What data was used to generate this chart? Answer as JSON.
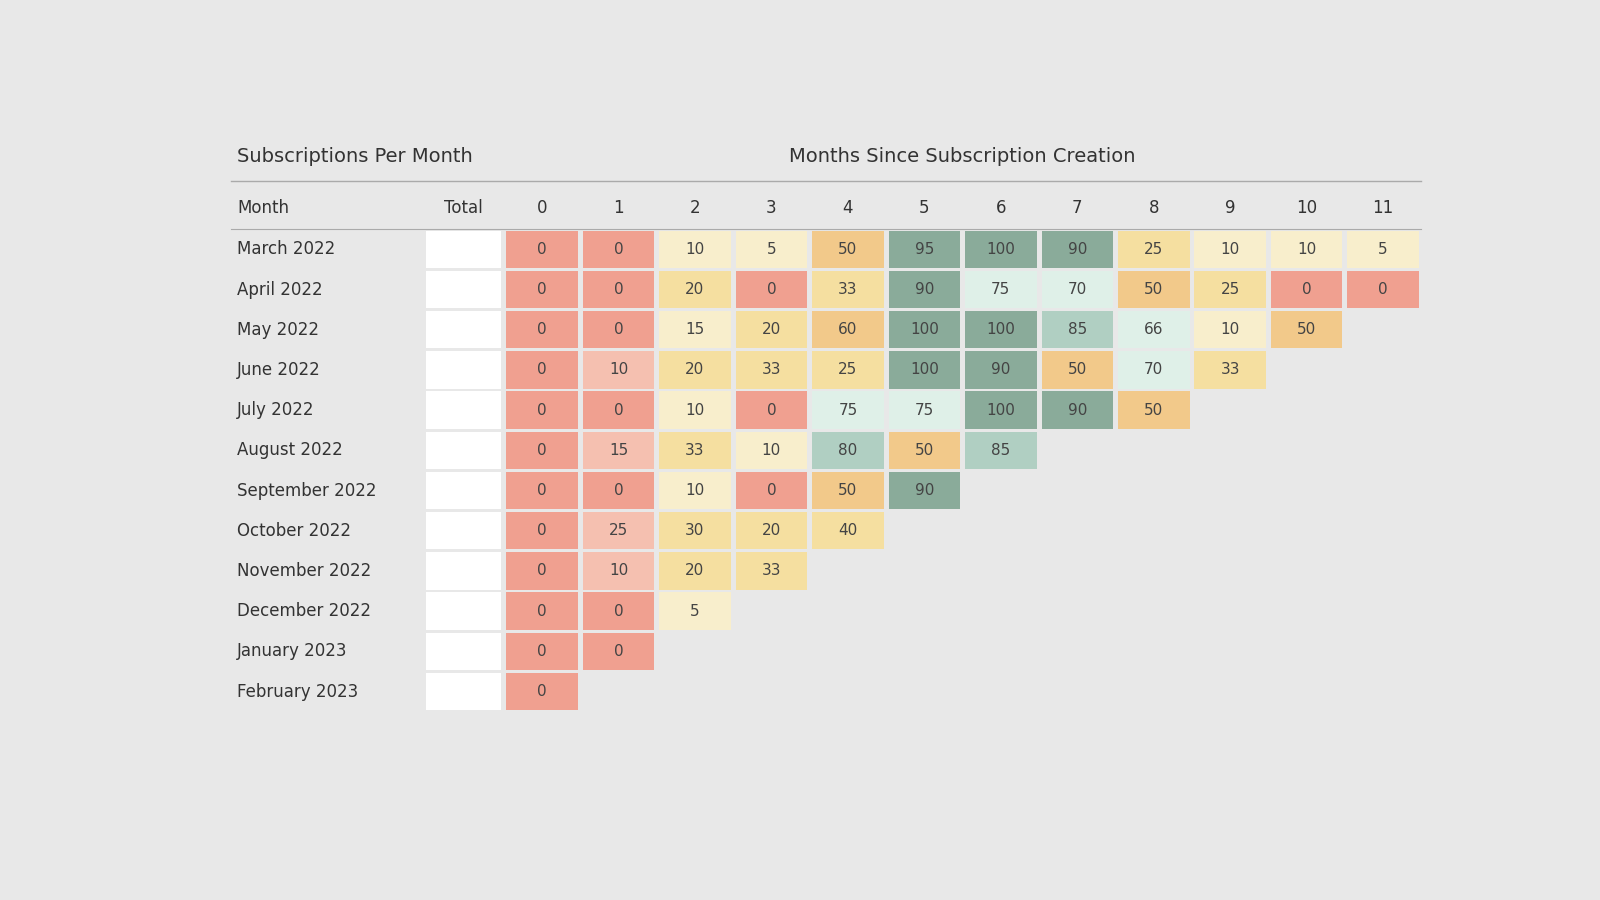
{
  "title_left": "Subscriptions Per Month",
  "title_right": "Months Since Subscription Creation",
  "col_header": [
    "Month",
    "Total",
    "0",
    "1",
    "2",
    "3",
    "4",
    "5",
    "6",
    "7",
    "8",
    "9",
    "10",
    "11"
  ],
  "rows": [
    {
      "month": "March 2022",
      "values": [
        0,
        0,
        10,
        5,
        50,
        95,
        100,
        90,
        25,
        10,
        10,
        5
      ]
    },
    {
      "month": "April 2022",
      "values": [
        0,
        0,
        20,
        0,
        33,
        90,
        75,
        70,
        50,
        25,
        0,
        0
      ]
    },
    {
      "month": "May 2022",
      "values": [
        0,
        0,
        15,
        20,
        60,
        100,
        100,
        85,
        66,
        10,
        50,
        null
      ]
    },
    {
      "month": "June 2022",
      "values": [
        0,
        10,
        20,
        33,
        25,
        100,
        90,
        50,
        70,
        33,
        null,
        null
      ]
    },
    {
      "month": "July 2022",
      "values": [
        0,
        0,
        10,
        0,
        75,
        75,
        100,
        90,
        50,
        null,
        null,
        null
      ]
    },
    {
      "month": "August 2022",
      "values": [
        0,
        15,
        33,
        10,
        80,
        50,
        85,
        null,
        null,
        null,
        null,
        null
      ]
    },
    {
      "month": "September 2022",
      "values": [
        0,
        0,
        10,
        0,
        50,
        90,
        null,
        null,
        null,
        null,
        null,
        null
      ]
    },
    {
      "month": "October 2022",
      "values": [
        0,
        25,
        30,
        20,
        40,
        null,
        null,
        null,
        null,
        null,
        null,
        null
      ]
    },
    {
      "month": "November 2022",
      "values": [
        0,
        10,
        20,
        33,
        null,
        null,
        null,
        null,
        null,
        null,
        null,
        null
      ]
    },
    {
      "month": "December 2022",
      "values": [
        0,
        0,
        5,
        null,
        null,
        null,
        null,
        null,
        null,
        null,
        null,
        null
      ]
    },
    {
      "month": "January 2023",
      "values": [
        0,
        0,
        null,
        null,
        null,
        null,
        null,
        null,
        null,
        null,
        null,
        null
      ]
    },
    {
      "month": "February 2023",
      "values": [
        0,
        null,
        null,
        null,
        null,
        null,
        null,
        null,
        null,
        null,
        null,
        null
      ]
    }
  ],
  "bg_color": "#e8e8e8",
  "header_text_color": "#333333",
  "data_text_color": "#444444",
  "salmon_color": "#f0a090",
  "peach_color": "#f2c98a",
  "light_peach": "#f5dfa0",
  "lighter_peach": "#f8eecc",
  "teal_dark": "#8aab9a",
  "teal_mid": "#b0cfc2",
  "teal_light": "#dff0e8",
  "line_color": "#aaaaaa"
}
